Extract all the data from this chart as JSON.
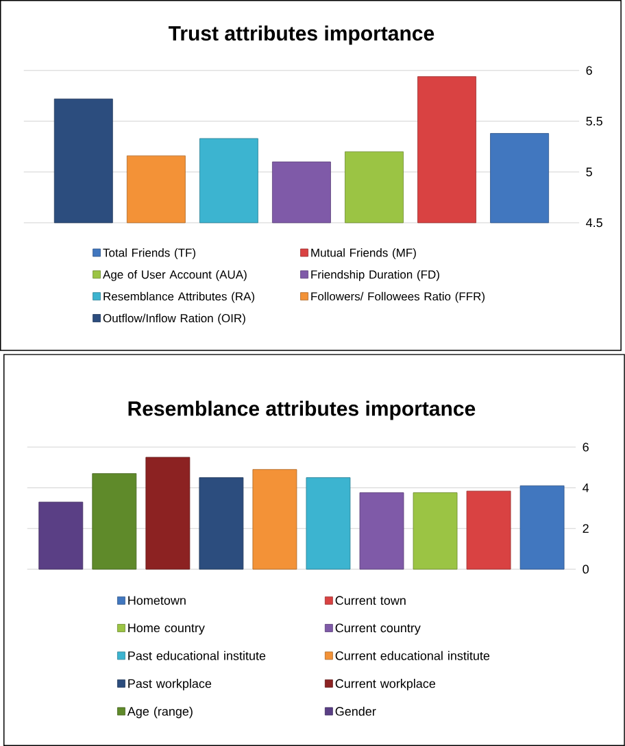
{
  "chart_data": [
    {
      "type": "bar",
      "title": "Trust attributes importance",
      "categories": [
        null
      ],
      "ylim": [
        4.5,
        6
      ],
      "yticks": [
        4.5,
        5,
        5.5,
        6
      ],
      "grid": "y",
      "legend": "bottom",
      "series": [
        {
          "name": "Outflow/Inflow Ration (OIR)",
          "color": "#2c4d7e",
          "values": [
            5.72
          ]
        },
        {
          "name": "Followers/ Followees Ratio (FFR)",
          "color": "#f39237",
          "values": [
            5.16
          ]
        },
        {
          "name": "Resemblance Attributes (RA)",
          "color": "#3cb4d0",
          "values": [
            5.33
          ]
        },
        {
          "name": "Friendship Duration (FD)",
          "color": "#7f5aa8",
          "values": [
            5.1
          ]
        },
        {
          "name": "Age of User Account (AUA)",
          "color": "#9bc444",
          "values": [
            5.2
          ]
        },
        {
          "name": "Mutual Friends (MF)",
          "color": "#d94242",
          "values": [
            5.94
          ]
        },
        {
          "name": "Total Friends (TF)",
          "color": "#4177bf",
          "values": [
            5.38
          ]
        }
      ]
    },
    {
      "type": "bar",
      "title": "Resemblance attributes importance",
      "categories": [
        null
      ],
      "ylim": [
        0,
        6
      ],
      "yticks": [
        0,
        2,
        4,
        6
      ],
      "grid": "y",
      "legend": "bottom",
      "series": [
        {
          "name": "Gender",
          "color": "#5a3f85",
          "values": [
            3.3
          ]
        },
        {
          "name": "Age (range)",
          "color": "#5f8a2a",
          "values": [
            4.7
          ]
        },
        {
          "name": "Current workplace",
          "color": "#8c2222",
          "values": [
            5.5
          ]
        },
        {
          "name": "Past workplace",
          "color": "#2c4d7e",
          "values": [
            4.5
          ]
        },
        {
          "name": "Current educational institute",
          "color": "#f39237",
          "values": [
            4.9
          ]
        },
        {
          "name": "Past educational institute",
          "color": "#3cb4d0",
          "values": [
            4.5
          ]
        },
        {
          "name": "Current country",
          "color": "#7f5aa8",
          "values": [
            3.76
          ]
        },
        {
          "name": "Home country",
          "color": "#9bc444",
          "values": [
            3.76
          ]
        },
        {
          "name": "Current town",
          "color": "#d94242",
          "values": [
            3.84
          ]
        },
        {
          "name": "Hometown",
          "color": "#4177bf",
          "values": [
            4.1
          ]
        }
      ]
    }
  ]
}
